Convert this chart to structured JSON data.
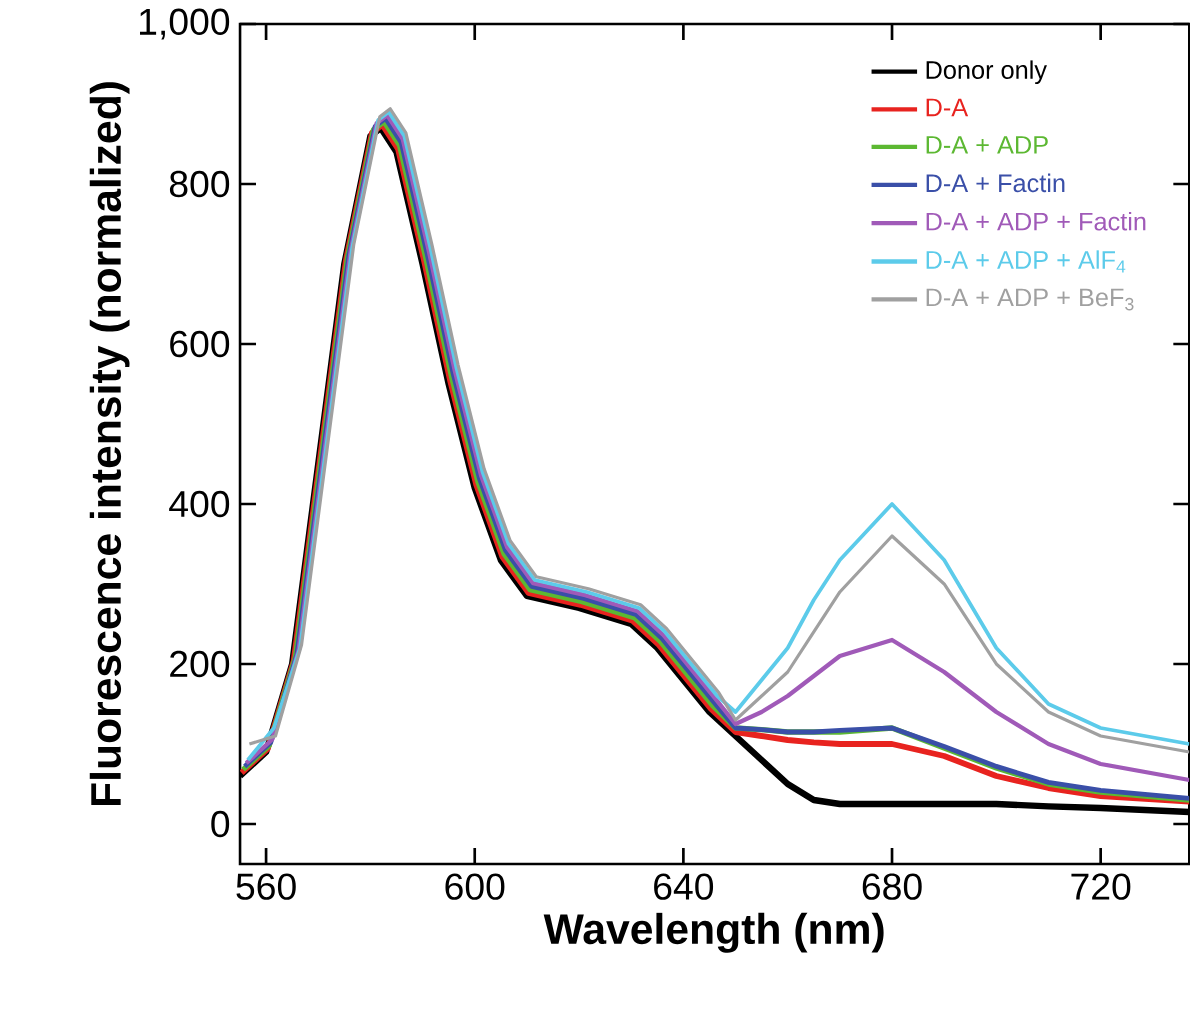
{
  "chart_data": {
    "type": "line",
    "xlabel": "Wavelength (nm)",
    "ylabel": "Fluorescence intensity (normalized)",
    "x": [
      555,
      560,
      565,
      570,
      575,
      580,
      582,
      585,
      590,
      595,
      600,
      605,
      610,
      620,
      630,
      635,
      640,
      645,
      650,
      655,
      660,
      665,
      670,
      680,
      690,
      700,
      710,
      720,
      737
    ],
    "xlim": [
      555,
      737
    ],
    "xticks": [
      560,
      600,
      640,
      680,
      720
    ],
    "ylim": [
      -50,
      1000
    ],
    "yticks": [
      0,
      200,
      400,
      600,
      800,
      {
        "value": 1000,
        "label": "1,000"
      }
    ],
    "legend": "top right",
    "grid": false,
    "marker": "none",
    "line_style": "solid",
    "series": [
      {
        "name": "Donor only",
        "color": "#000000",
        "values": [
          60,
          90,
          200,
          450,
          700,
          860,
          870,
          840,
          700,
          550,
          420,
          330,
          285,
          270,
          250,
          220,
          180,
          140,
          110,
          80,
          50,
          30,
          25,
          25,
          25,
          25,
          22,
          20,
          15
        ]
      },
      {
        "name": "D-A",
        "color": "#e8231f",
        "x": [
          555.3,
          560.3,
          565.3,
          570.3,
          575.3,
          580.3,
          582.3,
          585.3,
          590.3,
          595.3,
          600.3,
          605.3,
          610.3,
          620.3,
          630.3,
          635.3,
          640.3,
          645.3,
          650,
          655,
          660,
          665,
          670,
          680,
          690,
          700,
          710,
          720,
          737
        ],
        "values": [
          64,
          94,
          204,
          454,
          704,
          864,
          874,
          844,
          704,
          554,
          424,
          334,
          289,
          274,
          254,
          224,
          184,
          144,
          115,
          110,
          105,
          102,
          100,
          100,
          85,
          60,
          45,
          35,
          28
        ]
      },
      {
        "name": "D-A + ADP",
        "color": "#5cb832",
        "x": [
          555.6,
          560.6,
          565.6,
          570.6,
          575.6,
          580.6,
          582.6,
          585.6,
          590.6,
          595.6,
          600.6,
          605.6,
          610.6,
          620.6,
          630.6,
          635.6,
          640.6,
          645.6,
          650,
          655,
          660,
          665,
          670,
          680,
          690,
          700,
          710,
          720,
          737
        ],
        "values": [
          68,
          98,
          208,
          458,
          708,
          868,
          878,
          848,
          708,
          558,
          428,
          338,
          293,
          278,
          258,
          228,
          188,
          148,
          120,
          118,
          115,
          115,
          115,
          120,
          95,
          70,
          50,
          40,
          30
        ]
      },
      {
        "name": "D-A + Factin",
        "color": "#3a4fa8",
        "x": [
          555.9,
          560.9,
          565.9,
          570.9,
          575.9,
          580.9,
          582.9,
          585.9,
          590.9,
          595.9,
          600.9,
          605.9,
          610.9,
          620.9,
          630.9,
          635.9,
          640.9,
          645.9,
          650,
          655,
          660,
          665,
          670,
          680,
          690,
          700,
          710,
          720,
          737
        ],
        "values": [
          72,
          102,
          212,
          462,
          712,
          872,
          882,
          852,
          712,
          562,
          432,
          342,
          297,
          282,
          262,
          232,
          192,
          152,
          120,
          118,
          115,
          115,
          117,
          120,
          97,
          72,
          52,
          42,
          32
        ]
      },
      {
        "name": "D-A + ADP + Factin",
        "color": "#a05ab8",
        "x": [
          556.2,
          561.2,
          566.2,
          571.2,
          576.2,
          581.2,
          583.2,
          586.2,
          591.2,
          596.2,
          601.2,
          606.2,
          611.2,
          621.2,
          631.2,
          636.2,
          641.2,
          646.2,
          650,
          655,
          660,
          665,
          670,
          680,
          690,
          700,
          710,
          720,
          737
        ],
        "values": [
          76,
          106,
          216,
          466,
          716,
          876,
          886,
          856,
          716,
          566,
          436,
          346,
          301,
          286,
          266,
          236,
          196,
          156,
          125,
          140,
          160,
          185,
          210,
          230,
          190,
          140,
          100,
          75,
          55
        ]
      },
      {
        "name": "D-A + ADP + AlF$_{4}$",
        "color": "#5ccbea",
        "x": [
          556.5,
          561.5,
          566.5,
          571.5,
          576.5,
          581.5,
          583.5,
          586.5,
          591.5,
          596.5,
          601.5,
          606.5,
          611.5,
          621.5,
          631.5,
          636.5,
          641.5,
          646.5,
          650,
          655,
          660,
          665,
          670,
          680,
          690,
          700,
          710,
          720,
          737
        ],
        "values": [
          80,
          120,
          220,
          470,
          720,
          880,
          890,
          860,
          720,
          570,
          440,
          350,
          305,
          290,
          270,
          240,
          200,
          160,
          140,
          180,
          220,
          280,
          330,
          400,
          330,
          220,
          150,
          120,
          100
        ]
      },
      {
        "name": "D-A + ADP + BeF$_{3}$",
        "color": "#a0a0a0",
        "x": [
          556.8,
          561.8,
          566.8,
          571.8,
          576.8,
          581.8,
          583.8,
          586.8,
          591.8,
          596.8,
          601.8,
          606.8,
          611.8,
          621.8,
          631.8,
          636.8,
          641.8,
          646.8,
          650,
          655,
          660,
          665,
          670,
          680,
          690,
          700,
          710,
          720,
          737
        ],
        "values": [
          100,
          110,
          224,
          474,
          724,
          884,
          894,
          864,
          724,
          574,
          444,
          354,
          309,
          294,
          274,
          244,
          204,
          164,
          130,
          160,
          190,
          240,
          290,
          360,
          300,
          200,
          140,
          110,
          90
        ]
      }
    ]
  }
}
